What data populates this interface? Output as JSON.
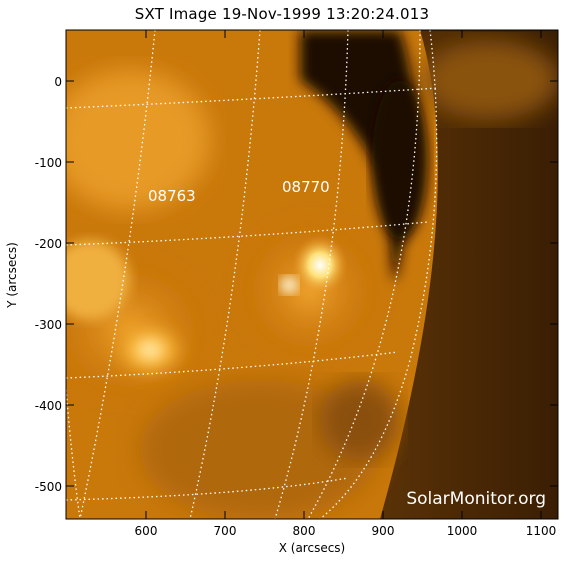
{
  "title": "SXT Image 19-Nov-1999 13:20:24.013",
  "axes": {
    "xlabel": "X (arcsecs)",
    "ylabel": "Y (arcsecs)",
    "x_ticks": [
      "600",
      "700",
      "800",
      "900",
      "1000",
      "1100"
    ],
    "y_ticks": [
      "0",
      "-100",
      "-200",
      "-300",
      "-400",
      "-500"
    ]
  },
  "labels": {
    "region_a": "08763",
    "region_b": "08770"
  },
  "watermark": "SolarMonitor.org",
  "colors": {
    "frame": "#000000",
    "grid": "#ffffff",
    "bright": "#fff8d0",
    "mid": "#e08a10",
    "dark": "#2a1400"
  }
}
